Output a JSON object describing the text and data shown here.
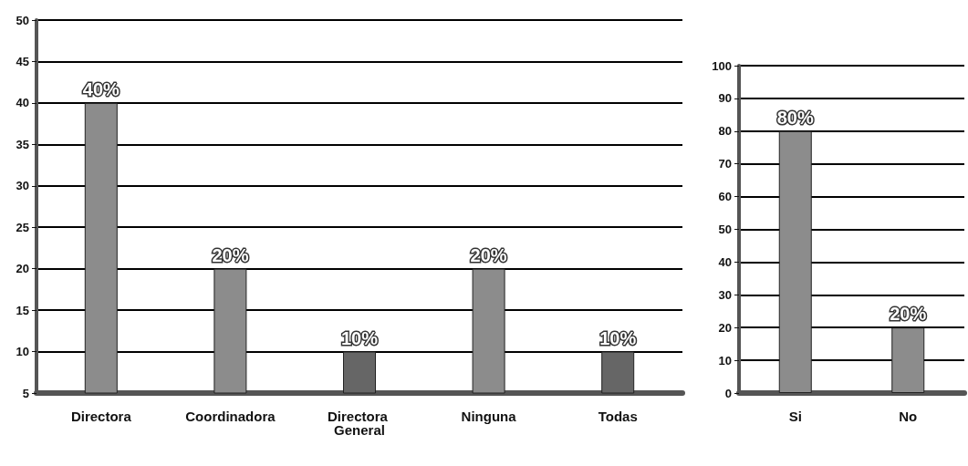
{
  "chart_data": [
    {
      "type": "bar",
      "categories": [
        "Directora",
        "Coordinadora",
        "Directora General",
        "Ninguna",
        "Todas"
      ],
      "values": [
        40,
        20,
        10,
        20,
        10
      ],
      "colors": [
        "#8c8c8c",
        "#8c8c8c",
        "#666666",
        "#8c8c8c",
        "#666666"
      ],
      "value_labels": [
        "40%",
        "20%",
        "10%",
        "20%",
        "10%"
      ],
      "ylim": [
        5,
        50
      ],
      "yticks": [
        5,
        10,
        15,
        20,
        25,
        30,
        35,
        40,
        45,
        50
      ],
      "grid": "y"
    },
    {
      "type": "bar",
      "categories": [
        "Si",
        "No"
      ],
      "values": [
        80,
        20
      ],
      "colors": [
        "#8c8c8c",
        "#8c8c8c"
      ],
      "value_labels": [
        "80%",
        "20%"
      ],
      "ylim": [
        0,
        100
      ],
      "yticks": [
        0,
        10,
        20,
        30,
        40,
        50,
        60,
        70,
        80,
        90,
        100
      ],
      "grid": "y"
    }
  ]
}
